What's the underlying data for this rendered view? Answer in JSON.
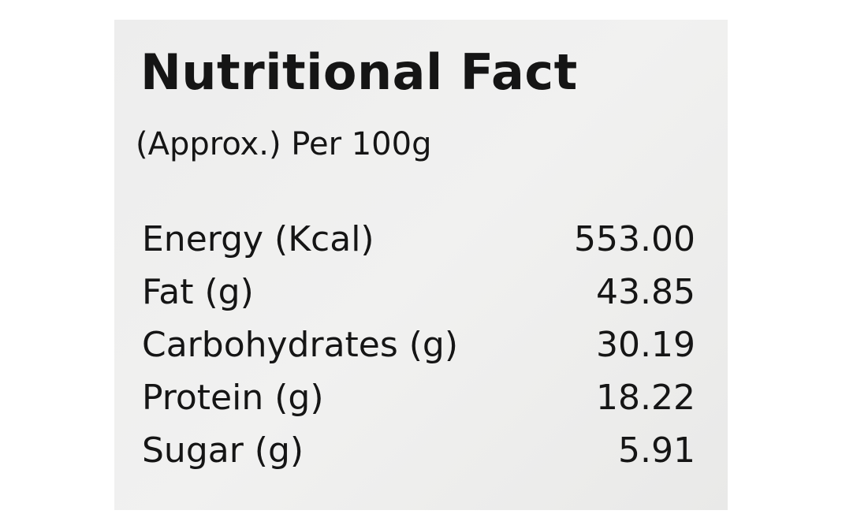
{
  "title": "Nutritional Fact",
  "subtitle": "(Approx.) Per 100g",
  "rows": [
    [
      "Energy (Kcal)",
      "553.00"
    ],
    [
      "Fat (g)",
      "43.85"
    ],
    [
      "Carbohydrates (g)",
      "30.19"
    ],
    [
      "Protein (g)",
      "18.22"
    ],
    [
      "Sugar (g)",
      "5.91"
    ]
  ]
}
